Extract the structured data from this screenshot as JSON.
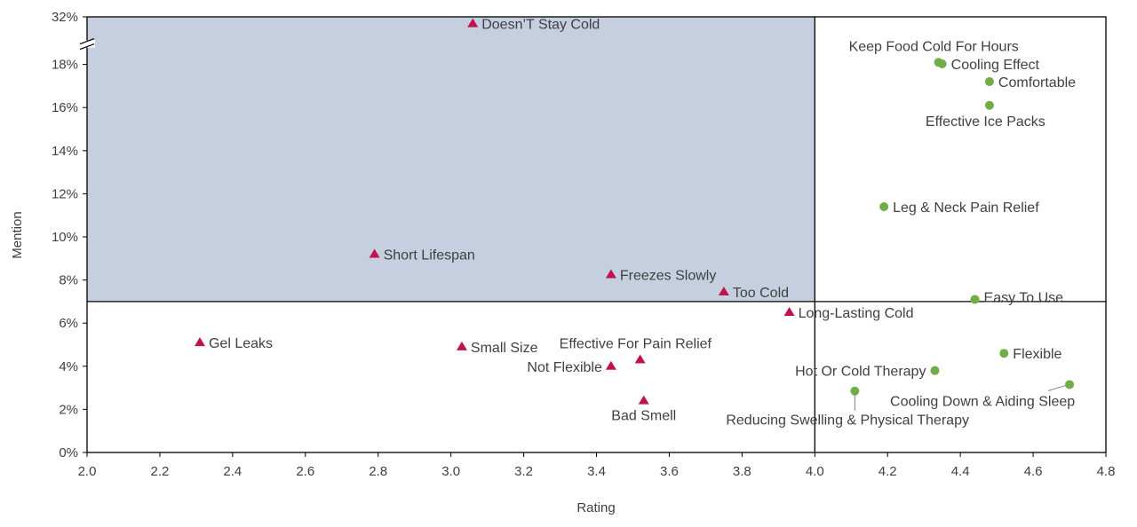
{
  "chart_data": {
    "type": "scatter",
    "xlabel": "Rating",
    "ylabel": "Mention",
    "xlim": [
      2.0,
      4.8
    ],
    "ylim": [
      0,
      32
    ],
    "x_ticks": [
      "2.0",
      "2.2",
      "2.4",
      "2.6",
      "2.8",
      "3.0",
      "3.2",
      "3.4",
      "3.6",
      "3.8",
      "4.0",
      "4.2",
      "4.4",
      "4.6",
      "4.8"
    ],
    "y_ticks": [
      "0%",
      "2%",
      "4%",
      "6%",
      "8%",
      "10%",
      "12%",
      "14%",
      "16%",
      "18%",
      "32%"
    ],
    "y_axis_break": "between 18% and 32%",
    "quadrant_lines": {
      "x": 4.0,
      "y": 7.0
    },
    "highlight_region": {
      "x": [
        2.0,
        4.0
      ],
      "y": [
        7.0,
        32
      ],
      "color": "#c5cfe0"
    },
    "grid": false,
    "series": [
      {
        "marker": "triangle",
        "color": "#c0134b",
        "points": [
          {
            "label": "Doesn’T Stay Cold",
            "x": 3.06,
            "y": 30
          },
          {
            "label": "Short Lifespan",
            "x": 2.79,
            "y": 9.2
          },
          {
            "label": "Freezes Slowly",
            "x": 3.44,
            "y": 8.25
          },
          {
            "label": "Too Cold",
            "x": 3.75,
            "y": 7.45
          },
          {
            "label": "Long-Lasting Cold",
            "x": 3.93,
            "y": 6.5
          },
          {
            "label": "Gel Leaks",
            "x": 2.31,
            "y": 5.1
          },
          {
            "label": "Small Size",
            "x": 3.03,
            "y": 4.9
          },
          {
            "label": "Effective For Pain Relief",
            "x": 3.52,
            "y": 4.3
          },
          {
            "label": "Not Flexible",
            "x": 3.44,
            "y": 4.0
          },
          {
            "label": "Bad Smell",
            "x": 3.53,
            "y": 2.4
          }
        ]
      },
      {
        "marker": "circle",
        "color": "#70ad47",
        "points": [
          {
            "label": "Keep Food Cold For Hours",
            "x": 4.34,
            "y": 18.6
          },
          {
            "label": "Cooling Effect",
            "x": 4.35,
            "y": 18.15
          },
          {
            "label": "Comfortable",
            "x": 4.48,
            "y": 17.2
          },
          {
            "label": "Effective Ice Packs",
            "x": 4.48,
            "y": 16.1
          },
          {
            "label": "Leg & Neck Pain Relief",
            "x": 4.19,
            "y": 11.4
          },
          {
            "label": "Easy To Use",
            "x": 4.44,
            "y": 7.1
          },
          {
            "label": "Flexible",
            "x": 4.52,
            "y": 4.6
          },
          {
            "label": "Hot Or Cold Therapy",
            "x": 4.33,
            "y": 3.8
          },
          {
            "label": "Reducing Swelling & Physical Therapy",
            "x": 4.11,
            "y": 2.85
          },
          {
            "label": "Cooling Down & Aiding Sleep",
            "x": 4.7,
            "y": 3.15
          }
        ]
      }
    ]
  }
}
